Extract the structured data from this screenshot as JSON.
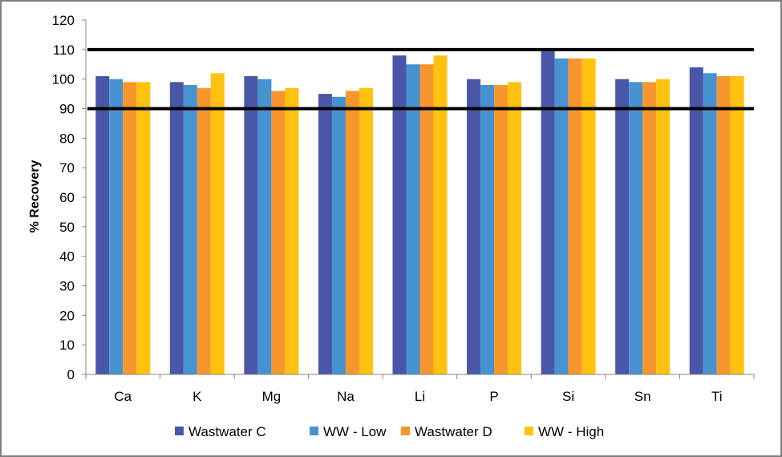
{
  "chart_data": {
    "type": "bar",
    "title": "",
    "xlabel": "",
    "ylabel": "% Recovery",
    "ylim": [
      0,
      120
    ],
    "yticks": [
      0,
      10,
      20,
      30,
      40,
      50,
      60,
      70,
      80,
      90,
      100,
      110,
      120
    ],
    "grid": false,
    "legend_position": "bottom",
    "categories": [
      "Ca",
      "K",
      "Mg",
      "Na",
      "Li",
      "P",
      "Si",
      "Sn",
      "Ti"
    ],
    "series": [
      {
        "name": "Wastwater C",
        "color": "#4a57a8",
        "values": [
          101,
          99,
          101,
          95,
          108,
          100,
          110,
          100,
          104
        ]
      },
      {
        "name": "WW - Low",
        "color": "#4793d1",
        "values": [
          100,
          98,
          100,
          94,
          105,
          98,
          107,
          99,
          102
        ]
      },
      {
        "name": "Wastwater D",
        "color": "#f7962c",
        "values": [
          99,
          97,
          96,
          96,
          105,
          98,
          107,
          99,
          101
        ]
      },
      {
        "name": "WW - High",
        "color": "#ffc20e",
        "values": [
          99,
          102,
          97,
          97,
          108,
          99,
          107,
          100,
          101
        ]
      }
    ],
    "reference_lines": [
      {
        "value": 90,
        "color": "#000000"
      },
      {
        "value": 110,
        "color": "#000000"
      }
    ]
  }
}
